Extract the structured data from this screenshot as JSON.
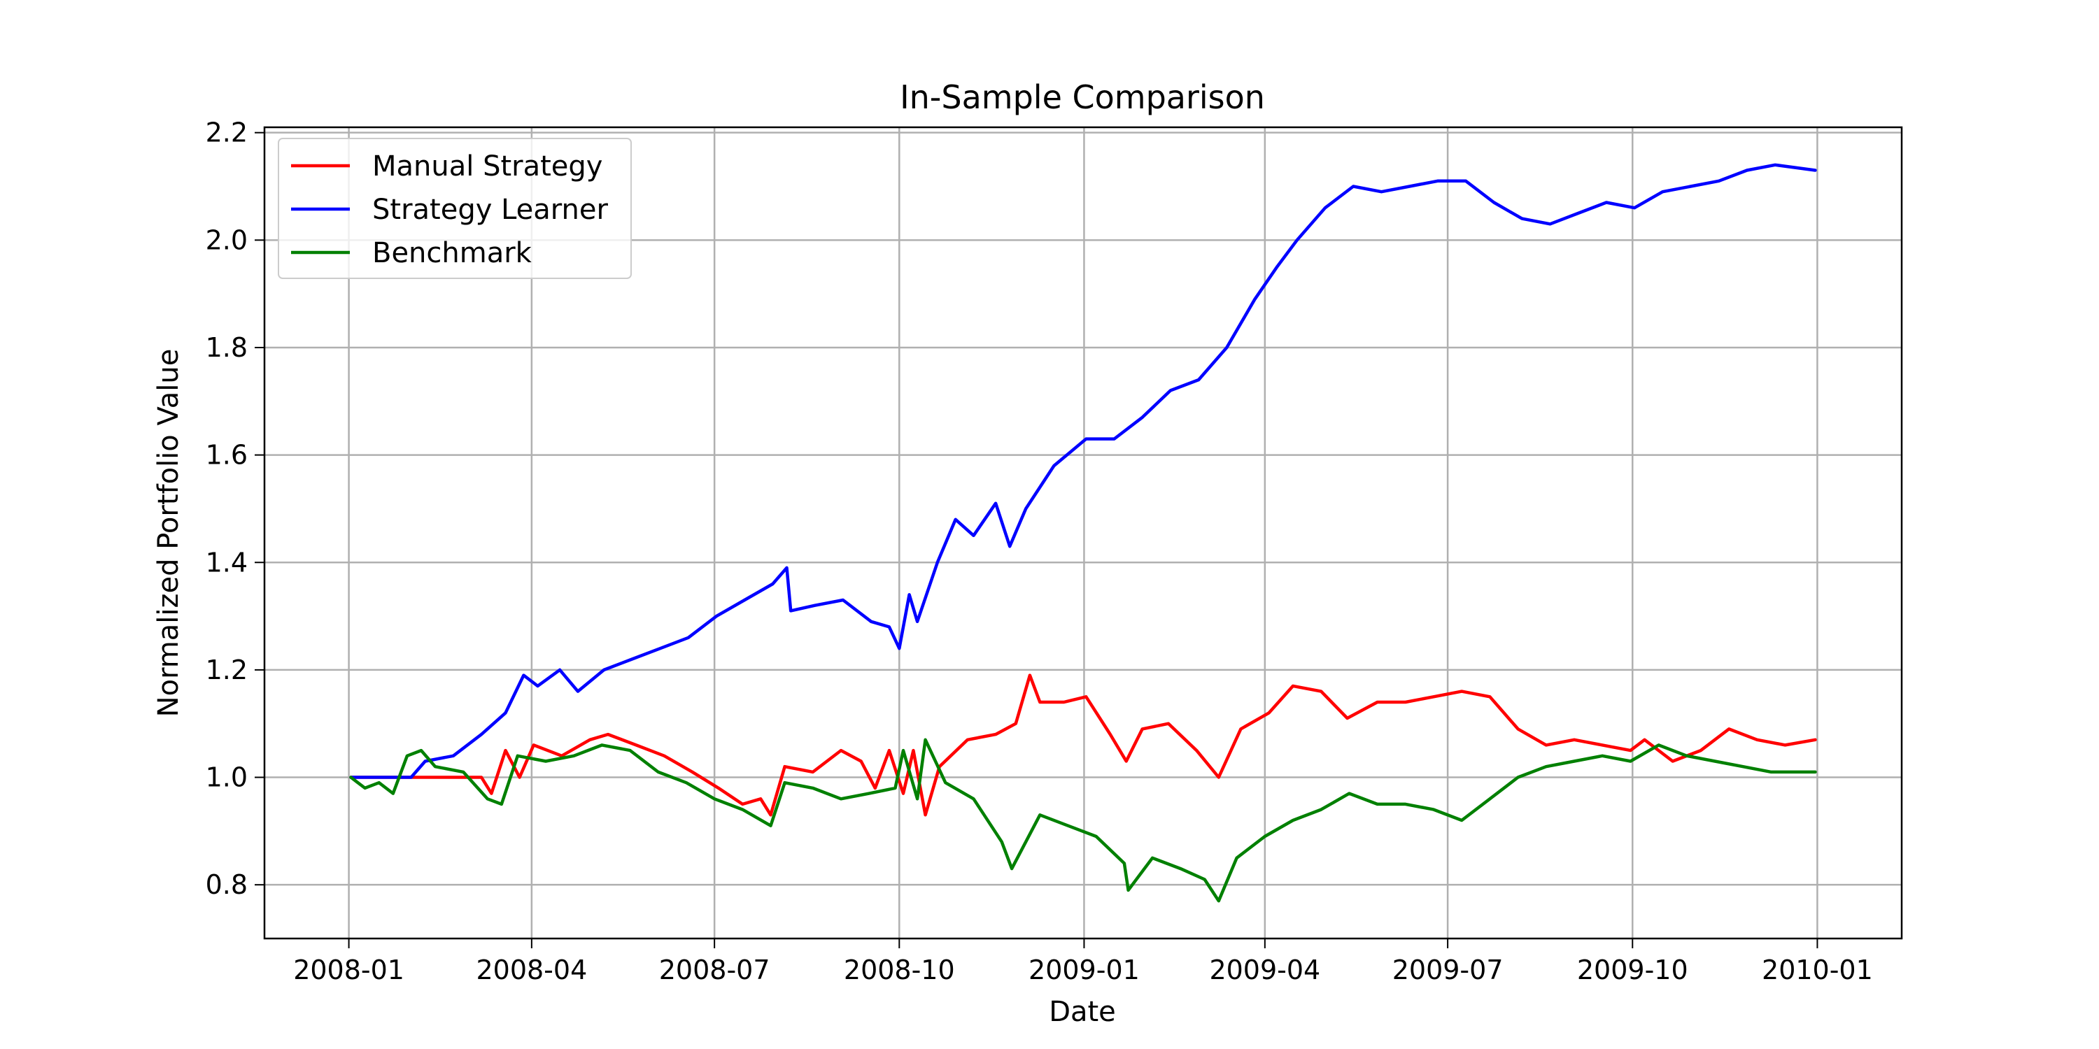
{
  "chart_data": {
    "type": "line",
    "title": "In-Sample Comparison",
    "xlabel": "Date",
    "ylabel": "Normalized Portfolio Value",
    "x_ticks": [
      "2008-01",
      "2008-04",
      "2008-07",
      "2008-10",
      "2009-01",
      "2009-04",
      "2009-07",
      "2009-10",
      "2010-01"
    ],
    "y_ticks": [
      "0.8",
      "1.0",
      "1.2",
      "1.4",
      "1.6",
      "1.8",
      "2.0",
      "2.2"
    ],
    "xlim": [
      "2007-11-20",
      "2010-02-12"
    ],
    "ylim": [
      0.7,
      2.21
    ],
    "grid": true,
    "legend_position": "top-left",
    "series": [
      {
        "name": "Manual Strategy",
        "color": "#ff0000",
        "points": [
          [
            "2008-01-02",
            1.0
          ],
          [
            "2008-02-05",
            1.0
          ],
          [
            "2008-03-07",
            1.0
          ],
          [
            "2008-03-12",
            0.97
          ],
          [
            "2008-03-19",
            1.05
          ],
          [
            "2008-03-26",
            1.0
          ],
          [
            "2008-04-02",
            1.06
          ],
          [
            "2008-04-16",
            1.04
          ],
          [
            "2008-04-30",
            1.07
          ],
          [
            "2008-05-09",
            1.08
          ],
          [
            "2008-05-23",
            1.06
          ],
          [
            "2008-06-06",
            1.04
          ],
          [
            "2008-06-20",
            1.01
          ],
          [
            "2008-07-03",
            0.98
          ],
          [
            "2008-07-15",
            0.95
          ],
          [
            "2008-07-24",
            0.96
          ],
          [
            "2008-07-29",
            0.93
          ],
          [
            "2008-08-05",
            1.02
          ],
          [
            "2008-08-19",
            1.01
          ],
          [
            "2008-09-02",
            1.05
          ],
          [
            "2008-09-12",
            1.03
          ],
          [
            "2008-09-19",
            0.98
          ],
          [
            "2008-09-26",
            1.05
          ],
          [
            "2008-10-03",
            0.97
          ],
          [
            "2008-10-08",
            1.05
          ],
          [
            "2008-10-14",
            0.93
          ],
          [
            "2008-10-21",
            1.02
          ],
          [
            "2008-11-04",
            1.07
          ],
          [
            "2008-11-18",
            1.08
          ],
          [
            "2008-11-28",
            1.1
          ],
          [
            "2008-12-05",
            1.19
          ],
          [
            "2008-12-10",
            1.14
          ],
          [
            "2008-12-22",
            1.14
          ],
          [
            "2009-01-02",
            1.15
          ],
          [
            "2009-01-14",
            1.08
          ],
          [
            "2009-01-22",
            1.03
          ],
          [
            "2009-01-30",
            1.09
          ],
          [
            "2009-02-12",
            1.1
          ],
          [
            "2009-02-26",
            1.05
          ],
          [
            "2009-03-09",
            1.0
          ],
          [
            "2009-03-20",
            1.09
          ],
          [
            "2009-04-03",
            1.12
          ],
          [
            "2009-04-15",
            1.17
          ],
          [
            "2009-04-29",
            1.16
          ],
          [
            "2009-05-12",
            1.11
          ],
          [
            "2009-05-27",
            1.14
          ],
          [
            "2009-06-10",
            1.14
          ],
          [
            "2009-06-24",
            1.15
          ],
          [
            "2009-07-08",
            1.16
          ],
          [
            "2009-07-22",
            1.15
          ],
          [
            "2009-08-05",
            1.09
          ],
          [
            "2009-08-19",
            1.06
          ],
          [
            "2009-09-02",
            1.07
          ],
          [
            "2009-09-16",
            1.06
          ],
          [
            "2009-09-30",
            1.05
          ],
          [
            "2009-10-07",
            1.07
          ],
          [
            "2009-10-21",
            1.03
          ],
          [
            "2009-11-04",
            1.05
          ],
          [
            "2009-11-18",
            1.09
          ],
          [
            "2009-12-02",
            1.07
          ],
          [
            "2009-12-16",
            1.06
          ],
          [
            "2009-12-31",
            1.07
          ]
        ]
      },
      {
        "name": "Strategy Learner",
        "color": "#0000ff",
        "points": [
          [
            "2008-01-02",
            1.0
          ],
          [
            "2008-02-01",
            1.0
          ],
          [
            "2008-02-08",
            1.03
          ],
          [
            "2008-02-22",
            1.04
          ],
          [
            "2008-03-07",
            1.08
          ],
          [
            "2008-03-19",
            1.12
          ],
          [
            "2008-03-28",
            1.19
          ],
          [
            "2008-04-04",
            1.17
          ],
          [
            "2008-04-15",
            1.2
          ],
          [
            "2008-04-24",
            1.16
          ],
          [
            "2008-05-07",
            1.2
          ],
          [
            "2008-05-21",
            1.22
          ],
          [
            "2008-06-04",
            1.24
          ],
          [
            "2008-06-18",
            1.26
          ],
          [
            "2008-07-02",
            1.3
          ],
          [
            "2008-07-16",
            1.33
          ],
          [
            "2008-07-30",
            1.36
          ],
          [
            "2008-08-06",
            1.39
          ],
          [
            "2008-08-08",
            1.31
          ],
          [
            "2008-08-20",
            1.32
          ],
          [
            "2008-09-03",
            1.33
          ],
          [
            "2008-09-17",
            1.29
          ],
          [
            "2008-09-26",
            1.28
          ],
          [
            "2008-10-01",
            1.24
          ],
          [
            "2008-10-06",
            1.34
          ],
          [
            "2008-10-10",
            1.29
          ],
          [
            "2008-10-20",
            1.4
          ],
          [
            "2008-10-29",
            1.48
          ],
          [
            "2008-11-07",
            1.45
          ],
          [
            "2008-11-18",
            1.51
          ],
          [
            "2008-11-25",
            1.43
          ],
          [
            "2008-12-03",
            1.5
          ],
          [
            "2008-12-17",
            1.58
          ],
          [
            "2009-01-02",
            1.63
          ],
          [
            "2009-01-16",
            1.63
          ],
          [
            "2009-01-30",
            1.67
          ],
          [
            "2009-02-13",
            1.72
          ],
          [
            "2009-02-27",
            1.74
          ],
          [
            "2009-03-13",
            1.8
          ],
          [
            "2009-03-27",
            1.89
          ],
          [
            "2009-04-07",
            1.95
          ],
          [
            "2009-04-17",
            2.0
          ],
          [
            "2009-05-01",
            2.06
          ],
          [
            "2009-05-15",
            2.1
          ],
          [
            "2009-05-29",
            2.09
          ],
          [
            "2009-06-12",
            2.1
          ],
          [
            "2009-06-26",
            2.11
          ],
          [
            "2009-07-10",
            2.11
          ],
          [
            "2009-07-24",
            2.07
          ],
          [
            "2009-08-07",
            2.04
          ],
          [
            "2009-08-21",
            2.03
          ],
          [
            "2009-09-04",
            2.05
          ],
          [
            "2009-09-18",
            2.07
          ],
          [
            "2009-10-02",
            2.06
          ],
          [
            "2009-10-16",
            2.09
          ],
          [
            "2009-10-30",
            2.1
          ],
          [
            "2009-11-13",
            2.11
          ],
          [
            "2009-11-27",
            2.13
          ],
          [
            "2009-12-11",
            2.14
          ],
          [
            "2009-12-31",
            2.13
          ]
        ]
      },
      {
        "name": "Benchmark",
        "color": "#008000",
        "points": [
          [
            "2008-01-02",
            1.0
          ],
          [
            "2008-01-09",
            0.98
          ],
          [
            "2008-01-16",
            0.99
          ],
          [
            "2008-01-23",
            0.97
          ],
          [
            "2008-01-30",
            1.04
          ],
          [
            "2008-02-06",
            1.05
          ],
          [
            "2008-02-13",
            1.02
          ],
          [
            "2008-02-27",
            1.01
          ],
          [
            "2008-03-10",
            0.96
          ],
          [
            "2008-03-17",
            0.95
          ],
          [
            "2008-03-25",
            1.04
          ],
          [
            "2008-04-08",
            1.03
          ],
          [
            "2008-04-22",
            1.04
          ],
          [
            "2008-05-06",
            1.06
          ],
          [
            "2008-05-20",
            1.05
          ],
          [
            "2008-06-03",
            1.01
          ],
          [
            "2008-06-17",
            0.99
          ],
          [
            "2008-07-01",
            0.96
          ],
          [
            "2008-07-15",
            0.94
          ],
          [
            "2008-07-29",
            0.91
          ],
          [
            "2008-08-05",
            0.99
          ],
          [
            "2008-08-19",
            0.98
          ],
          [
            "2008-09-02",
            0.96
          ],
          [
            "2008-09-16",
            0.97
          ],
          [
            "2008-09-29",
            0.98
          ],
          [
            "2008-10-03",
            1.05
          ],
          [
            "2008-10-10",
            0.96
          ],
          [
            "2008-10-14",
            1.07
          ],
          [
            "2008-10-24",
            0.99
          ],
          [
            "2008-11-07",
            0.96
          ],
          [
            "2008-11-21",
            0.88
          ],
          [
            "2008-11-26",
            0.83
          ],
          [
            "2008-12-10",
            0.93
          ],
          [
            "2008-12-24",
            0.91
          ],
          [
            "2009-01-07",
            0.89
          ],
          [
            "2009-01-21",
            0.84
          ],
          [
            "2009-01-23",
            0.79
          ],
          [
            "2009-02-04",
            0.85
          ],
          [
            "2009-02-18",
            0.83
          ],
          [
            "2009-03-02",
            0.81
          ],
          [
            "2009-03-09",
            0.77
          ],
          [
            "2009-03-18",
            0.85
          ],
          [
            "2009-04-01",
            0.89
          ],
          [
            "2009-04-15",
            0.92
          ],
          [
            "2009-04-29",
            0.94
          ],
          [
            "2009-05-13",
            0.97
          ],
          [
            "2009-05-27",
            0.95
          ],
          [
            "2009-06-10",
            0.95
          ],
          [
            "2009-06-24",
            0.94
          ],
          [
            "2009-07-08",
            0.92
          ],
          [
            "2009-07-22",
            0.96
          ],
          [
            "2009-08-05",
            1.0
          ],
          [
            "2009-08-19",
            1.02
          ],
          [
            "2009-09-02",
            1.03
          ],
          [
            "2009-09-16",
            1.04
          ],
          [
            "2009-09-30",
            1.03
          ],
          [
            "2009-10-14",
            1.06
          ],
          [
            "2009-10-28",
            1.04
          ],
          [
            "2009-11-11",
            1.03
          ],
          [
            "2009-11-25",
            1.02
          ],
          [
            "2009-12-09",
            1.01
          ],
          [
            "2009-12-31",
            1.01
          ]
        ]
      }
    ]
  }
}
